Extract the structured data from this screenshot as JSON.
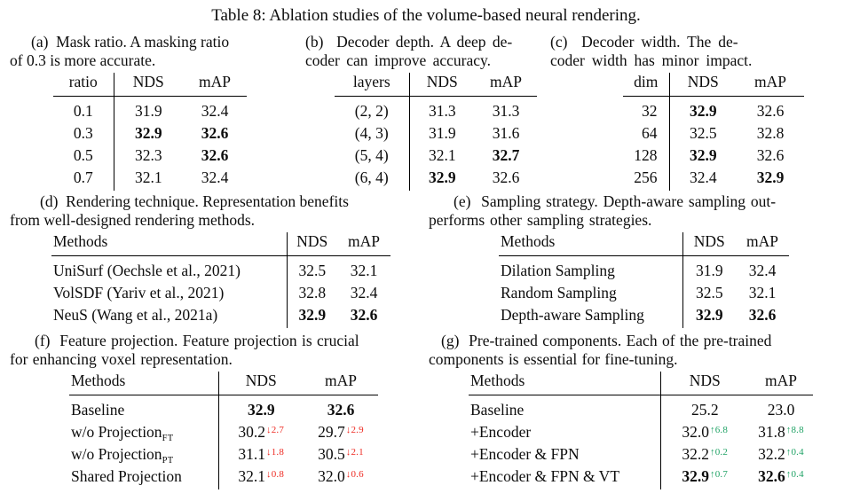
{
  "title": "Table 8: Ablation studies of the volume-based neural rendering.",
  "colors": {
    "increase_delta": "#21a366",
    "decrease_delta": "#ee2b23"
  },
  "subtables": {
    "a": {
      "caption_lines": [
        "(a)  Mask ratio. A masking ratio",
        "of 0.3 is more accurate."
      ],
      "headers": [
        "ratio",
        "NDS",
        "mAP"
      ],
      "rows": [
        [
          {
            "t": "0.1"
          },
          {
            "t": "31.9"
          },
          {
            "t": "32.4"
          }
        ],
        [
          {
            "t": "0.3"
          },
          {
            "t": "32.9",
            "b": true
          },
          {
            "t": "32.6",
            "b": true
          }
        ],
        [
          {
            "t": "0.5"
          },
          {
            "t": "32.3"
          },
          {
            "t": "32.6",
            "b": true
          }
        ],
        [
          {
            "t": "0.7"
          },
          {
            "t": "32.1"
          },
          {
            "t": "32.4"
          }
        ]
      ]
    },
    "b": {
      "caption_lines": [
        "(b)  Decoder depth. A deep de-",
        "coder can improve accuracy."
      ],
      "headers": [
        "layers",
        "NDS",
        "mAP"
      ],
      "rows": [
        [
          {
            "t": "(2, 2)"
          },
          {
            "t": "31.3"
          },
          {
            "t": "31.3"
          }
        ],
        [
          {
            "t": "(4, 3)"
          },
          {
            "t": "31.9"
          },
          {
            "t": "31.6"
          }
        ],
        [
          {
            "t": "(5, 4)"
          },
          {
            "t": "32.1"
          },
          {
            "t": "32.7",
            "b": true
          }
        ],
        [
          {
            "t": "(6, 4)"
          },
          {
            "t": "32.9",
            "b": true
          },
          {
            "t": "32.6"
          }
        ]
      ]
    },
    "c": {
      "caption_lines": [
        "(c)  Decoder width. The de-",
        "coder width has minor impact."
      ],
      "headers": [
        "dim",
        "NDS",
        "mAP"
      ],
      "rows": [
        [
          {
            "t": "32"
          },
          {
            "t": "32.9",
            "b": true
          },
          {
            "t": "32.6"
          }
        ],
        [
          {
            "t": "64"
          },
          {
            "t": "32.5"
          },
          {
            "t": "32.8"
          }
        ],
        [
          {
            "t": "128"
          },
          {
            "t": "32.9",
            "b": true
          },
          {
            "t": "32.6"
          }
        ],
        [
          {
            "t": "256"
          },
          {
            "t": "32.4"
          },
          {
            "t": "32.9",
            "b": true
          }
        ]
      ]
    },
    "d": {
      "caption_lines": [
        "(d)  Rendering technique. Representation benefits",
        "from well-designed rendering methods."
      ],
      "headers": [
        "Methods",
        "NDS",
        "mAP"
      ],
      "rows": [
        [
          {
            "t": "UniSurf (Oechsle et al., 2021)"
          },
          {
            "t": "32.5"
          },
          {
            "t": "32.1"
          }
        ],
        [
          {
            "t": "VolSDF (Yariv et al., 2021)"
          },
          {
            "t": "32.8"
          },
          {
            "t": "32.4"
          }
        ],
        [
          {
            "t": "NeuS (Wang et al., 2021a)"
          },
          {
            "t": "32.9",
            "b": true
          },
          {
            "t": "32.6",
            "b": true
          }
        ]
      ]
    },
    "e": {
      "caption_lines": [
        "(e)  Sampling strategy. Depth-aware sampling out-",
        "performs other sampling strategies."
      ],
      "headers": [
        "Methods",
        "NDS",
        "mAP"
      ],
      "rows": [
        [
          {
            "t": "Dilation Sampling"
          },
          {
            "t": "31.9"
          },
          {
            "t": "32.4"
          }
        ],
        [
          {
            "t": "Random Sampling"
          },
          {
            "t": "32.5"
          },
          {
            "t": "32.1"
          }
        ],
        [
          {
            "t": "Depth-aware Sampling"
          },
          {
            "t": "32.9",
            "b": true
          },
          {
            "t": "32.6",
            "b": true
          }
        ]
      ]
    },
    "f": {
      "caption_lines": [
        "(f)  Feature projection. Feature projection is crucial",
        "for enhancing voxel representation."
      ],
      "headers": [
        "Methods",
        "NDS",
        "mAP"
      ],
      "rows": [
        [
          {
            "t": "Baseline"
          },
          {
            "t": "32.9",
            "b": true
          },
          {
            "t": "32.6",
            "b": true
          }
        ],
        [
          {
            "t": "w/o Projection",
            "sub": "FT"
          },
          {
            "t": "30.2",
            "sup": "↓2.7"
          },
          {
            "t": "29.7",
            "sup": "↓2.9"
          }
        ],
        [
          {
            "t": "w/o Projection",
            "sub": "PT"
          },
          {
            "t": "31.1",
            "sup": "↓1.8"
          },
          {
            "t": "30.5",
            "sup": "↓2.1"
          }
        ],
        [
          {
            "t": "Shared Projection"
          },
          {
            "t": "32.1",
            "sup": "↓0.8"
          },
          {
            "t": "32.0",
            "sup": "↓0.6"
          }
        ]
      ]
    },
    "g": {
      "caption_lines": [
        "(g)  Pre-trained components. Each of the pre-trained",
        "components is essential for fine-tuning."
      ],
      "headers": [
        "Methods",
        "NDS",
        "mAP"
      ],
      "rows": [
        [
          {
            "t": "Baseline"
          },
          {
            "t": "25.2"
          },
          {
            "t": "23.0"
          }
        ],
        [
          {
            "t": "+Encoder"
          },
          {
            "t": "32.0",
            "sup": "↑6.8"
          },
          {
            "t": "31.8",
            "sup": "↑8.8"
          }
        ],
        [
          {
            "t": "+Encoder & FPN"
          },
          {
            "t": "32.2",
            "sup": "↑0.2"
          },
          {
            "t": "32.2",
            "sup": "↑0.4"
          }
        ],
        [
          {
            "t": "+Encoder & FPN & VT"
          },
          {
            "t": "32.9",
            "b": true,
            "sup": "↑0.7"
          },
          {
            "t": "32.6",
            "b": true,
            "sup": "↑0.4"
          }
        ]
      ]
    }
  }
}
